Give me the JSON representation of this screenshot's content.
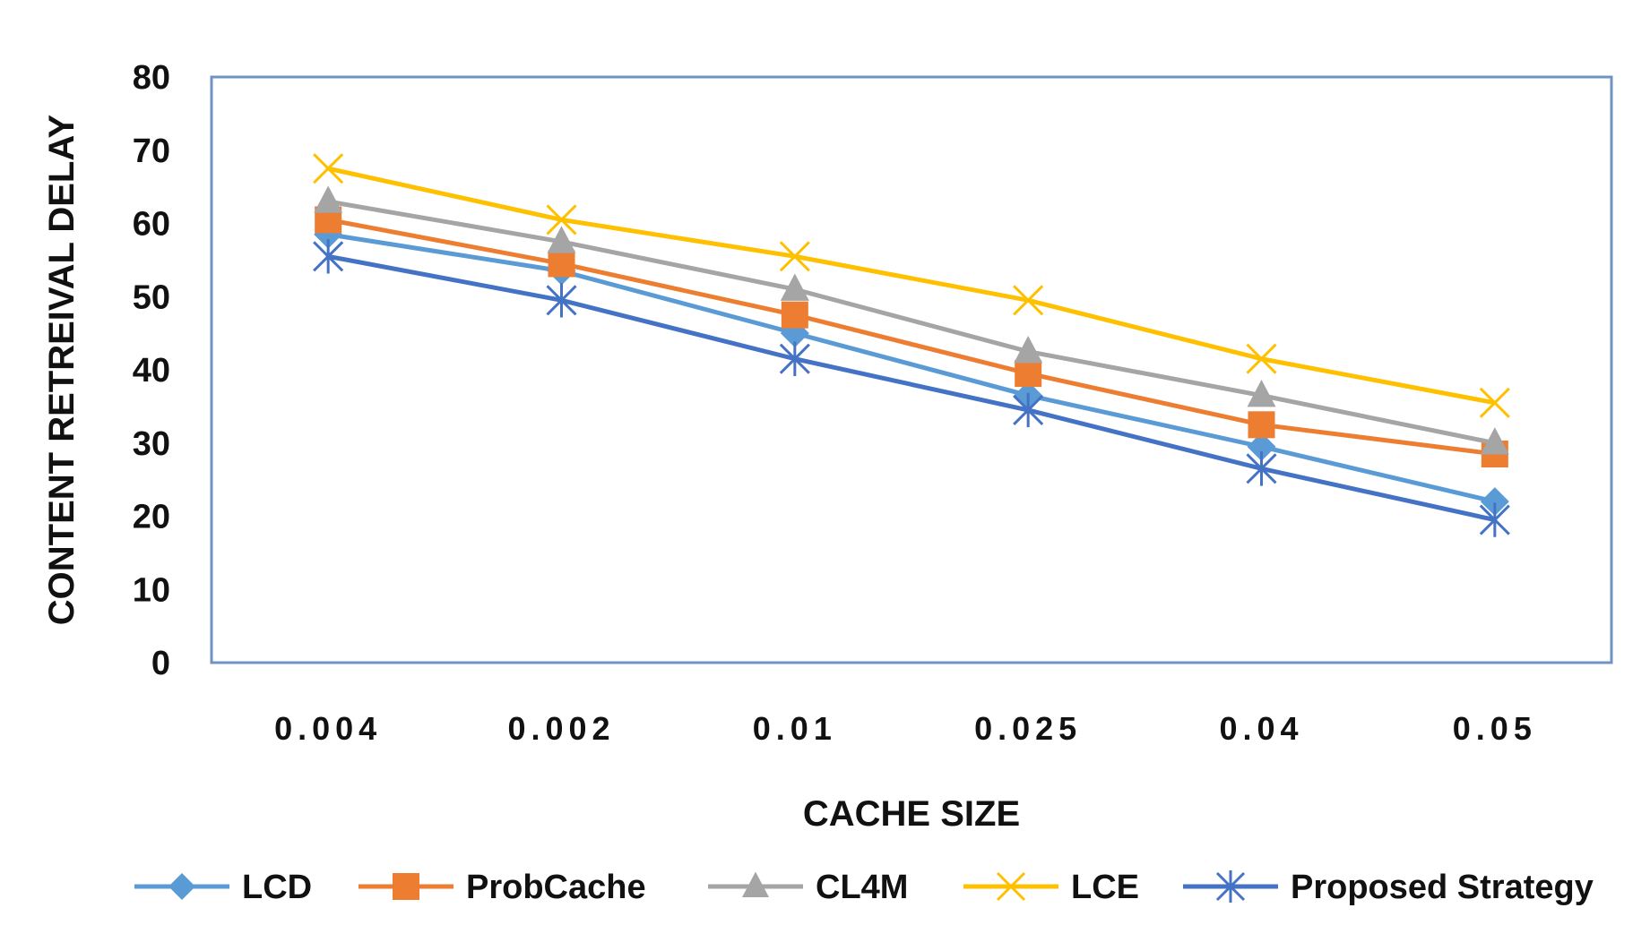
{
  "chart_data": {
    "type": "line",
    "title": "",
    "xlabel": "CACHE SIZE",
    "ylabel": "CONTENT RETREIVAL DELAY",
    "categories": [
      "0.004",
      "0.002",
      "0.01",
      "0.025",
      "0.04",
      "0.05"
    ],
    "ylim": [
      0,
      80
    ],
    "yticks": [
      "0",
      "10",
      "20",
      "30",
      "40",
      "50",
      "60",
      "70",
      "80"
    ],
    "grid": false,
    "legend_position": "bottom",
    "series": [
      {
        "name": "LCD",
        "color": "#5b9bd5",
        "marker": "diamond",
        "values": [
          58.5,
          53.5,
          45,
          36.5,
          29.5,
          22
        ]
      },
      {
        "name": "ProbCache",
        "color": "#ed7d31",
        "marker": "square",
        "values": [
          60.5,
          54.5,
          47.5,
          39.5,
          32.5,
          28.5
        ]
      },
      {
        "name": "CL4M",
        "color": "#a5a5a5",
        "marker": "triangle",
        "values": [
          63,
          57.5,
          51,
          42.5,
          36.5,
          30
        ]
      },
      {
        "name": "LCE",
        "color": "#ffc000",
        "marker": "x",
        "values": [
          67.5,
          60.5,
          55.5,
          49.5,
          41.5,
          35.5
        ]
      },
      {
        "name": "Proposed Strategy",
        "color": "#4472c4",
        "marker": "star",
        "values": [
          55.5,
          49.5,
          41.5,
          34.5,
          26.5,
          19.5
        ]
      }
    ]
  }
}
